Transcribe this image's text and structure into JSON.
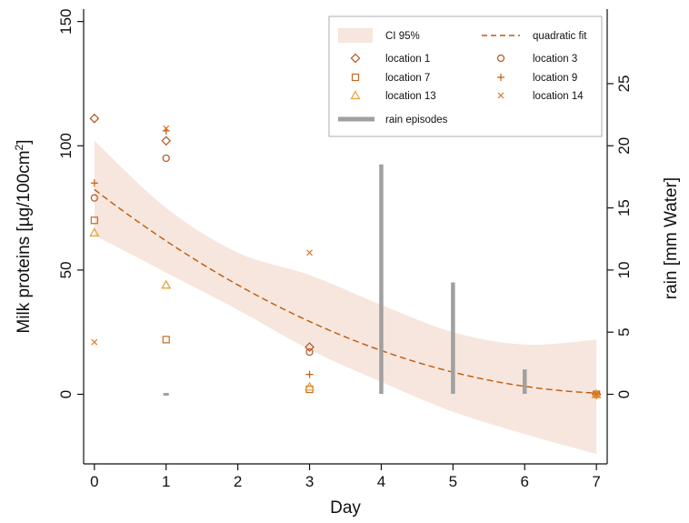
{
  "chart_data": {
    "type": "scatter",
    "xlabel": "Day",
    "ylabel": "Milk proteins [µg/100cm²]",
    "ylabel_main": "Milk proteins [µg/100cm",
    "ylabel_sup": "2",
    "ylabel_end": "]",
    "y2label": "rain [mm Water]",
    "xlim": [
      -0.15,
      7.15
    ],
    "ylim": [
      -28,
      155
    ],
    "y2lim": [
      -5.6,
      31
    ],
    "x_ticks": [
      "0",
      "1",
      "2",
      "3",
      "4",
      "5",
      "6",
      "7"
    ],
    "y_ticks": [
      "0",
      "50",
      "100",
      "150"
    ],
    "y2_ticks": [
      "0",
      "5",
      "10",
      "15",
      "20",
      "25"
    ],
    "legend": {
      "position": "top-right",
      "ci": "CI 95%",
      "fit": "quadratic fit",
      "rain": "rain episodes"
    },
    "colors": {
      "primary": "#bf5a0c",
      "secondary": "#e8a030",
      "ci_band": "#f6e6de",
      "rain": "#a0a0a0"
    },
    "series": [
      {
        "name": "location 1",
        "marker": "diamond",
        "color": "#b3541e",
        "x": [
          0,
          1,
          3,
          7
        ],
        "y": [
          111,
          102,
          19,
          0
        ]
      },
      {
        "name": "location 3",
        "marker": "circle",
        "color": "#b3541e",
        "x": [
          0,
          1,
          3,
          7
        ],
        "y": [
          79,
          95,
          17,
          0
        ]
      },
      {
        "name": "location 7",
        "marker": "square",
        "color": "#c46a2a",
        "x": [
          0,
          1,
          3,
          7
        ],
        "y": [
          70,
          22,
          2,
          0
        ]
      },
      {
        "name": "location 9",
        "marker": "plus",
        "color": "#cc5a10",
        "x": [
          0,
          1,
          3,
          7
        ],
        "y": [
          85,
          106,
          8,
          0
        ]
      },
      {
        "name": "location 13",
        "marker": "triangle",
        "color": "#e8a030",
        "x": [
          0,
          1,
          3,
          7
        ],
        "y": [
          65,
          44,
          3,
          0
        ]
      },
      {
        "name": "location 14",
        "marker": "cross",
        "color": "#e07020",
        "x": [
          0,
          1,
          3,
          7
        ],
        "y": [
          21,
          107,
          57,
          0
        ]
      }
    ],
    "fit": {
      "x0": 0,
      "x1": 7,
      "coeffs": [
        82.4,
        -22.2,
        1.5
      ]
    },
    "ci_band": [
      {
        "x": 0,
        "lo": 64,
        "hi": 102
      },
      {
        "x": 1,
        "lo": 49,
        "hi": 75
      },
      {
        "x": 2,
        "lo": 34,
        "hi": 57
      },
      {
        "x": 3,
        "lo": 18,
        "hi": 48
      },
      {
        "x": 4,
        "lo": 5,
        "hi": 36
      },
      {
        "x": 5,
        "lo": -7,
        "hi": 25
      },
      {
        "x": 6,
        "lo": -16,
        "hi": 20
      },
      {
        "x": 7,
        "lo": -24,
        "hi": 22
      }
    ],
    "rain_episodes": [
      {
        "day": 1,
        "mm": 0
      },
      {
        "day": 4,
        "mm": 18.5
      },
      {
        "day": 5,
        "mm": 9
      },
      {
        "day": 6,
        "mm": 2
      }
    ]
  }
}
